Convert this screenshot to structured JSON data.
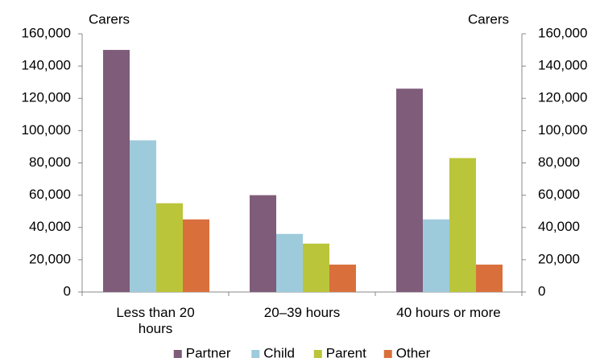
{
  "chart_data": {
    "type": "bar",
    "ylabel": "Carers",
    "y2label": "Carers",
    "categories": [
      "Less than 20 hours",
      "20–39 hours",
      "40 hours or more"
    ],
    "series": [
      {
        "name": "Partner",
        "color": "#7f5c7a",
        "values": [
          150000,
          60000,
          126000
        ]
      },
      {
        "name": "Child",
        "color": "#9dcbdc",
        "values": [
          94000,
          36000,
          45000
        ]
      },
      {
        "name": "Parent",
        "color": "#bac53a",
        "values": [
          55000,
          30000,
          83000
        ]
      },
      {
        "name": "Other",
        "color": "#d9703c",
        "values": [
          45000,
          17000,
          17000
        ]
      }
    ],
    "ylim": [
      0,
      160000
    ],
    "yticks": [
      0,
      {
        "value": 20000,
        "label": "20,000"
      },
      {
        "value": 40000,
        "label": "40,000"
      },
      {
        "value": 60000,
        "label": "60,000"
      },
      {
        "value": 80000,
        "label": "80,000"
      },
      {
        "value": 100000,
        "label": "100,000"
      },
      {
        "value": 120000,
        "label": "120,000"
      },
      {
        "value": 140000,
        "label": "140,000"
      },
      {
        "value": 160000,
        "label": "160,000"
      }
    ],
    "y2lim": [
      0,
      160000
    ],
    "y2ticks": [
      0,
      {
        "value": 20000,
        "label": "20,000"
      },
      {
        "value": 40000,
        "label": "40,000"
      },
      {
        "value": 60000,
        "label": "60,000"
      },
      {
        "value": 80000,
        "label": "80,000"
      },
      {
        "value": 100000,
        "label": "100,000"
      },
      {
        "value": 120000,
        "label": "120,000"
      },
      {
        "value": 140000,
        "label": "140,000"
      },
      {
        "value": 160000,
        "label": "160,000"
      }
    ],
    "grid": false,
    "legend": "bottom"
  }
}
